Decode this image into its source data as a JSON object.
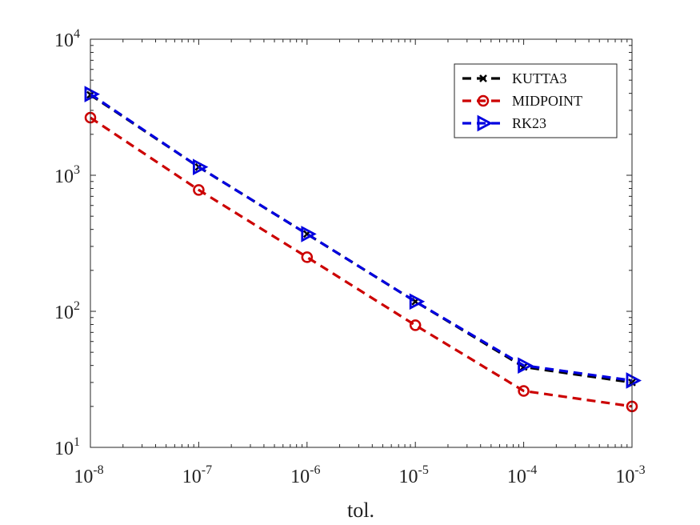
{
  "chart_data": {
    "type": "line",
    "title": "",
    "xlabel": "tol.",
    "ylabel": "",
    "xscale": "log",
    "yscale": "log",
    "xlim": [
      1e-08,
      0.001
    ],
    "ylim": [
      10,
      10000
    ],
    "grid": false,
    "legend_position": "top-right",
    "x": [
      1e-08,
      1e-07,
      1e-06,
      1e-05,
      0.0001,
      0.001
    ],
    "x_tick_labels": [
      {
        "base": "10",
        "exp": "-8"
      },
      {
        "base": "10",
        "exp": "-7"
      },
      {
        "base": "10",
        "exp": "-6"
      },
      {
        "base": "10",
        "exp": "-5"
      },
      {
        "base": "10",
        "exp": "-4"
      },
      {
        "base": "10",
        "exp": "-3"
      }
    ],
    "y_ticks": [
      10,
      100,
      1000,
      10000
    ],
    "y_tick_labels": [
      {
        "base": "10",
        "exp": "1"
      },
      {
        "base": "10",
        "exp": "2"
      },
      {
        "base": "10",
        "exp": "3"
      },
      {
        "base": "10",
        "exp": "4"
      }
    ],
    "series": [
      {
        "name": "KUTTA3",
        "color": "#000000",
        "marker": "x",
        "values": [
          3900,
          1150,
          370,
          118,
          39,
          30
        ]
      },
      {
        "name": "MIDPOINT",
        "color": "#cc0000",
        "marker": "circle",
        "values": [
          2650,
          780,
          250,
          79,
          26,
          20
        ]
      },
      {
        "name": "RK23",
        "color": "#0000e0",
        "marker": "triangle-right",
        "values": [
          3950,
          1150,
          370,
          118,
          40,
          31
        ]
      }
    ]
  }
}
